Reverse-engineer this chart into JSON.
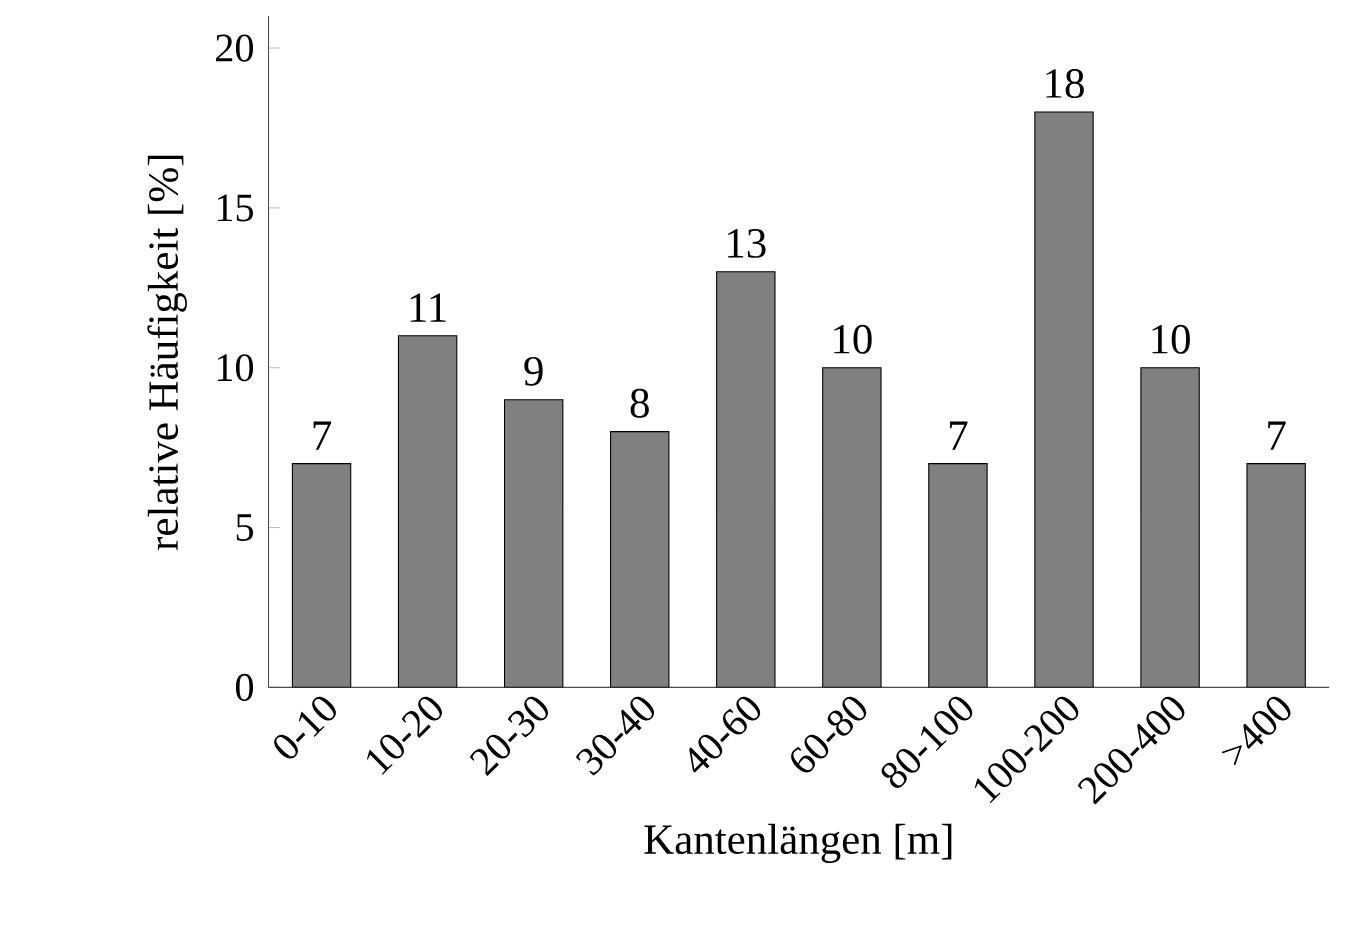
{
  "chart_data": {
    "type": "bar",
    "xlabel": "Kantenlängen [m]",
    "ylabel": "relative Häufigkeit [%]",
    "categories": [
      "0-10",
      "10-20",
      "20-30",
      "30-40",
      "40-60",
      "60-80",
      "80-100",
      "100-200",
      "200-400",
      ">400"
    ],
    "values": [
      7,
      11,
      9,
      8,
      13,
      10,
      7,
      18,
      10,
      7
    ],
    "color": "#808080",
    "ylim": [
      0,
      21
    ],
    "yticks": [
      0,
      5,
      10,
      15,
      20
    ],
    "data_labels": true
  }
}
